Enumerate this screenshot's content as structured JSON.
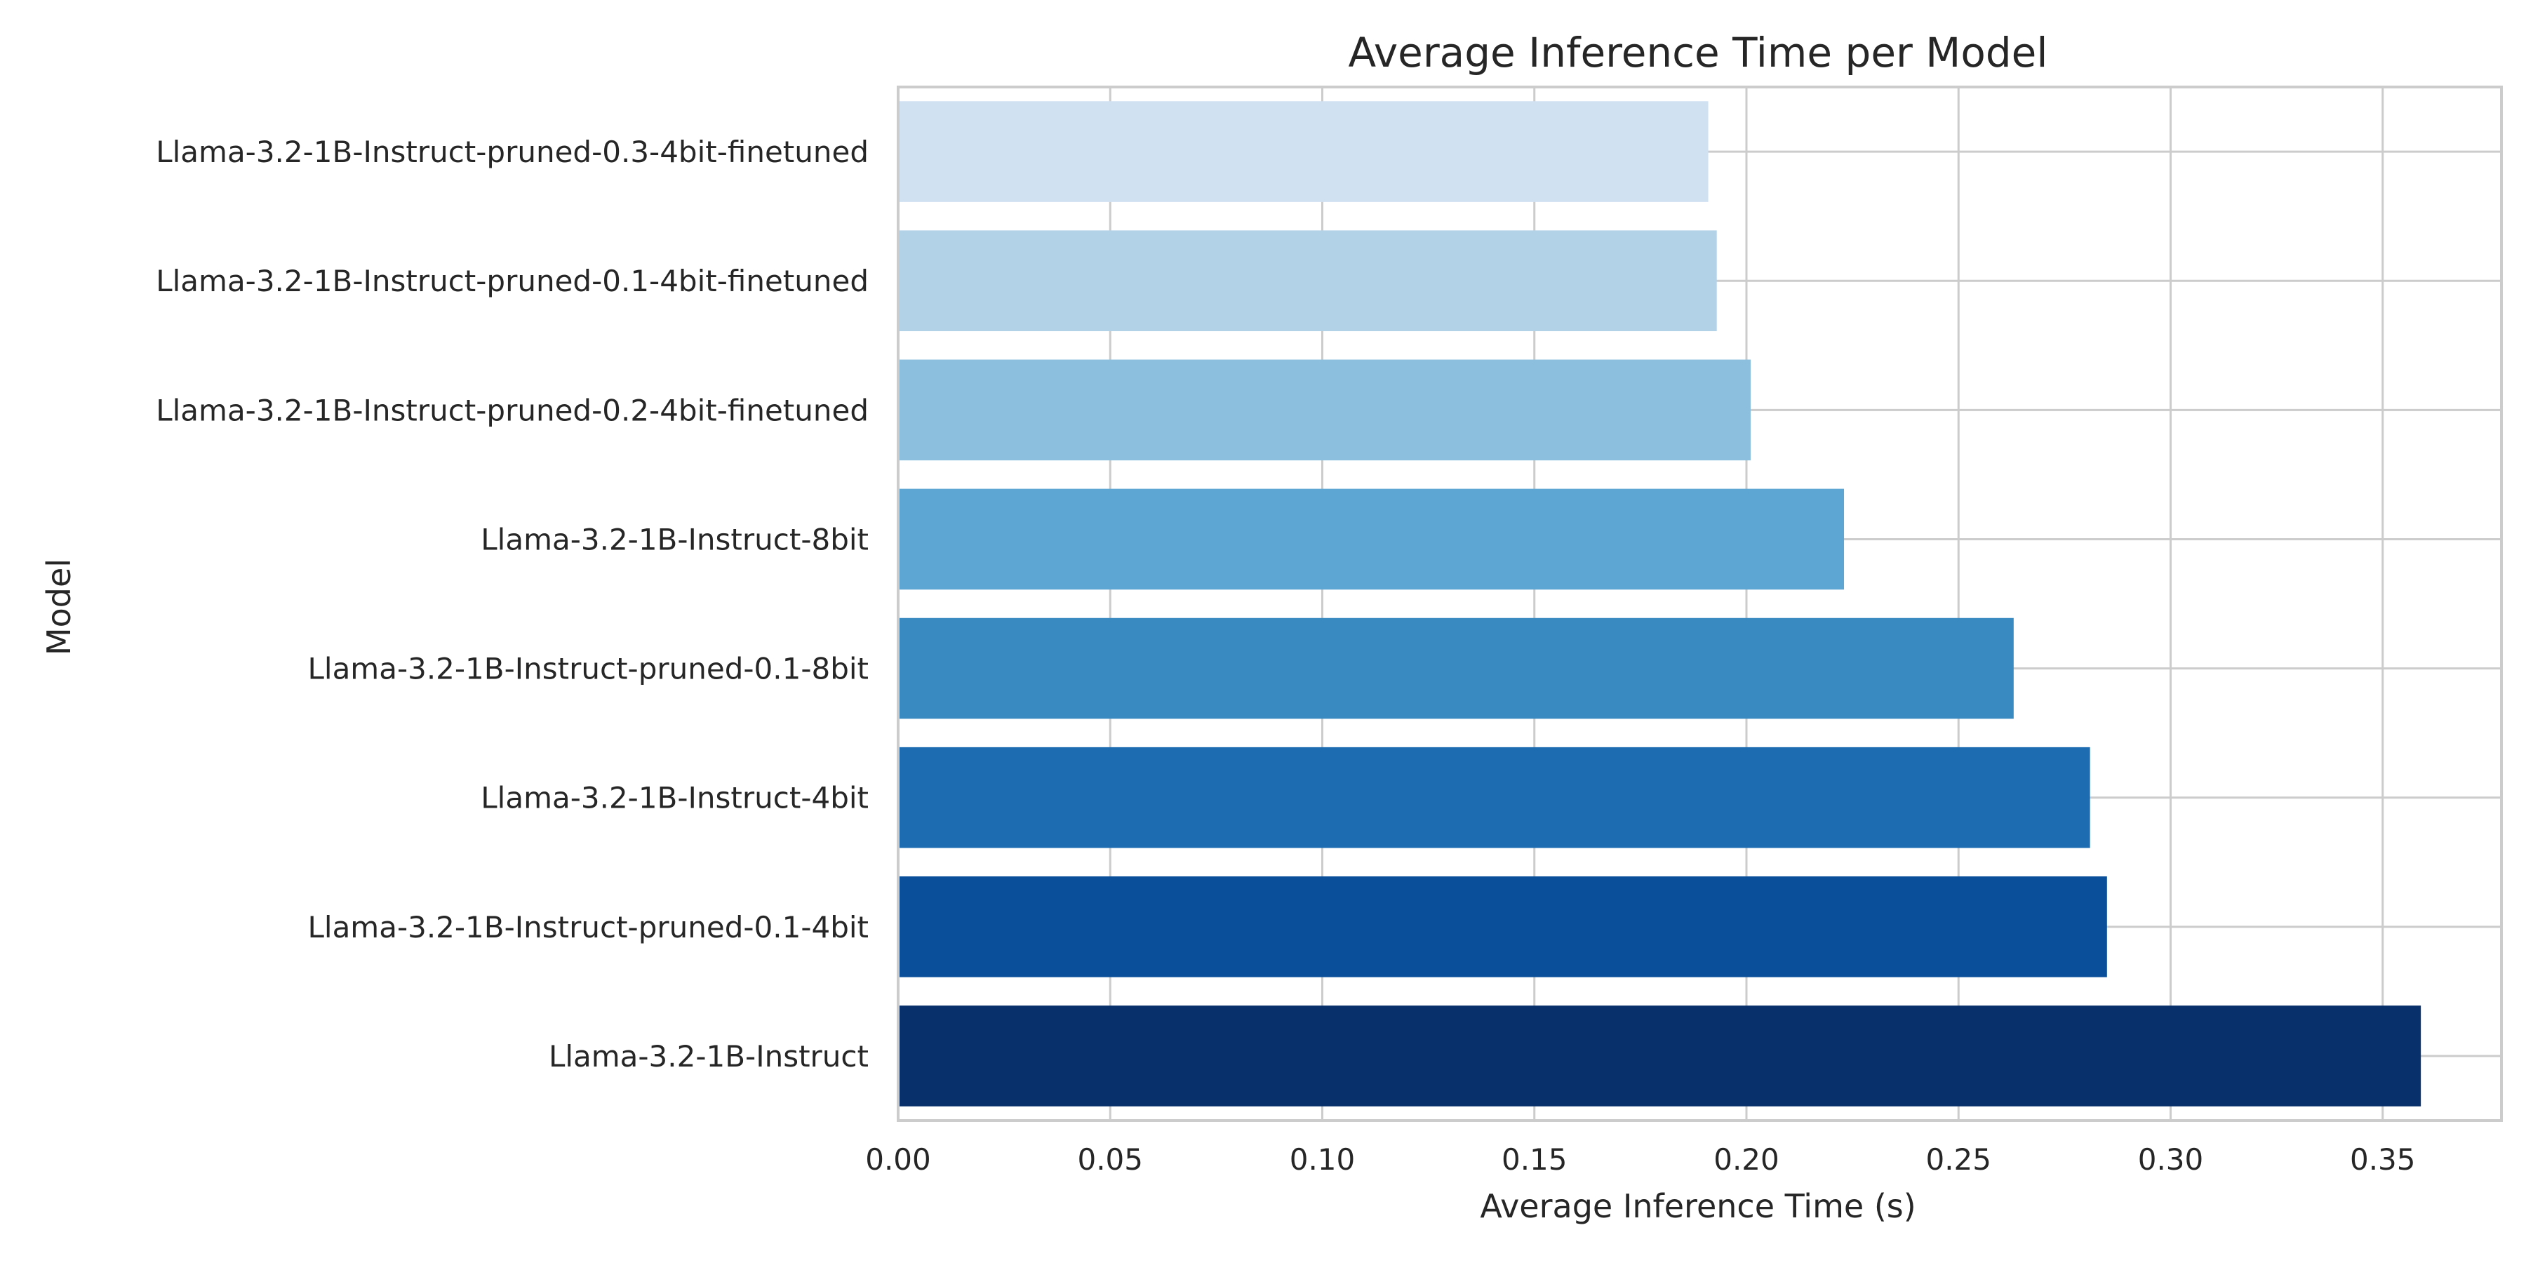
{
  "chart_data": {
    "type": "bar",
    "orientation": "horizontal",
    "title": "Average Inference Time per Model",
    "xlabel": "Average Inference Time (s)",
    "ylabel": "Model",
    "xlim": [
      0,
      0.378
    ],
    "xticks": [
      "0.00",
      "0.05",
      "0.10",
      "0.15",
      "0.20",
      "0.25",
      "0.30",
      "0.35"
    ],
    "grid": true,
    "categories": [
      "Llama-3.2-1B-Instruct-pruned-0.3-4bit-finetuned",
      "Llama-3.2-1B-Instruct-pruned-0.1-4bit-finetuned",
      "Llama-3.2-1B-Instruct-pruned-0.2-4bit-finetuned",
      "Llama-3.2-1B-Instruct-8bit",
      "Llama-3.2-1B-Instruct-pruned-0.1-8bit",
      "Llama-3.2-1B-Instruct-4bit",
      "Llama-3.2-1B-Instruct-pruned-0.1-4bit",
      "Llama-3.2-1B-Instruct"
    ],
    "values": [
      0.191,
      0.193,
      0.201,
      0.223,
      0.263,
      0.281,
      0.285,
      0.359
    ],
    "colors": [
      "#d0e1f2",
      "#b2d2e8",
      "#8bbfdd",
      "#5da5d2",
      "#3a8ac2",
      "#1d6cb1",
      "#0a4f9a",
      "#08306b"
    ]
  }
}
